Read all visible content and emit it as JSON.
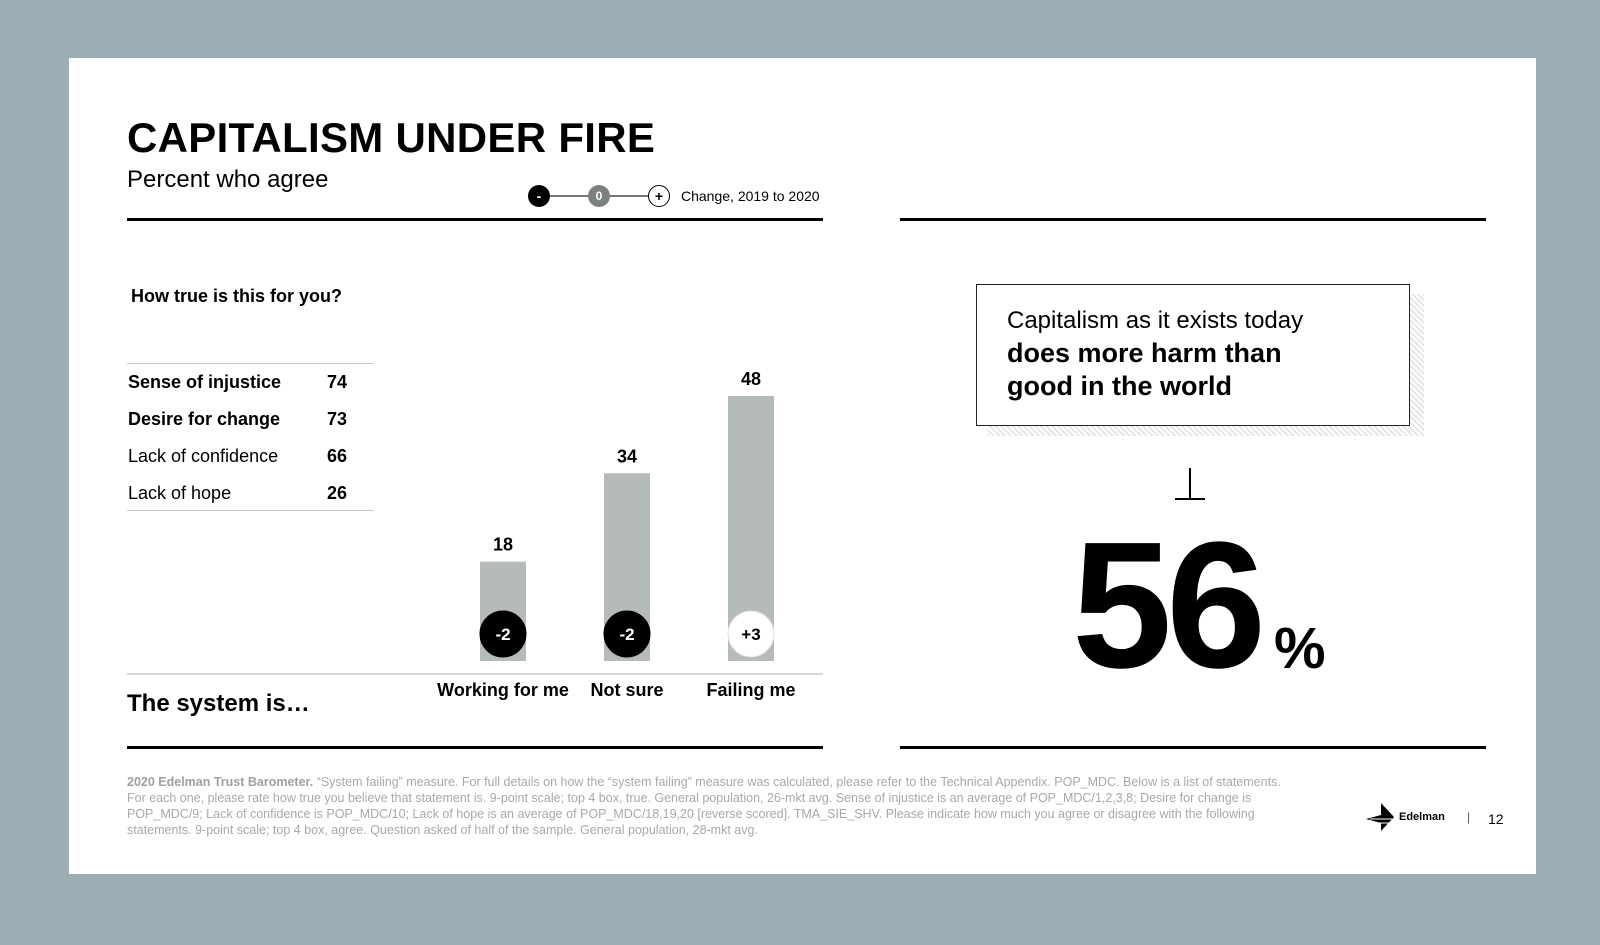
{
  "header": {
    "title": "CAPITALISM UNDER FIRE",
    "subtitle": "Percent who agree"
  },
  "legend": {
    "minus": "-",
    "zero": "0",
    "plus": "+",
    "label": "Change, 2019 to 2020"
  },
  "table": {
    "question": "How true is this for you?",
    "rows": [
      {
        "label": "Sense of injustice",
        "value": "74",
        "bold": true
      },
      {
        "label": "Desire for change",
        "value": "73",
        "bold": true
      },
      {
        "label": "Lack of confidence",
        "value": "66",
        "bold": false
      },
      {
        "label": "Lack of hope",
        "value": "26",
        "bold": false
      }
    ]
  },
  "system_label": "The system is…",
  "chart_data": {
    "type": "bar",
    "categories": [
      "Working for me",
      "Not sure",
      "Failing me"
    ],
    "values": [
      18,
      34,
      48
    ],
    "changes": [
      "-2",
      "-2",
      "+3"
    ],
    "change_direction": [
      "negative",
      "negative",
      "positive"
    ],
    "title": "",
    "xlabel": "The system is…",
    "ylabel": "",
    "ylim": [
      0,
      55
    ],
    "bar_color": "#b5bbb8"
  },
  "quote": {
    "line1": "Capitalism as it exists today",
    "line2": "does more harm than",
    "line3": "good in the world"
  },
  "stat": {
    "value": "56",
    "unit": "%"
  },
  "footnote": {
    "source": "2020 Edelman Trust Barometer.",
    "text": " “System failing” measure. For full details on how the “system failing” measure was calculated, please refer to the Technical Appendix. POP_MDC. Below is a list of statements. For each one, please rate how true you believe that statement is. 9-point scale; top 4 box, true. General population, 26-mkt avg. Sense of injustice is an average of POP_MDC/1,2,3,8; Desire for change is POP_MDC/9; Lack of confidence is POP_MDC/10; Lack of hope is an average of POP_MDC/18,19,20 [reverse scored]. TMA_SIE_SHV. Please indicate how much you agree or disagree with the following statements. 9-point scale; top 4 box, agree. Question asked of half of the sample. General population, 28-mkt avg."
  },
  "brand": "Edelman",
  "separator": "|",
  "page_number": "12"
}
